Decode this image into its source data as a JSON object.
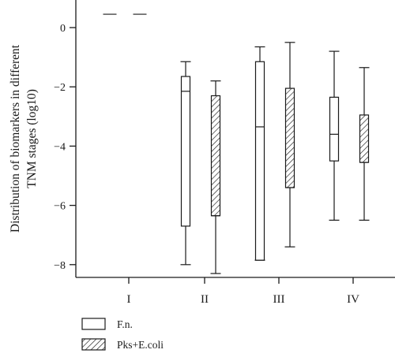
{
  "chart_data": {
    "type": "boxplot",
    "ylabel_line1": "Distribution of biomarkers in different",
    "ylabel_line2": "TNM stages (log10)",
    "ylim": [
      -8.4,
      0.9
    ],
    "yticks": [
      0,
      -2,
      -4,
      -6,
      -8
    ],
    "ytick_labels": [
      "0",
      "−2",
      "−4",
      "−6",
      "−8"
    ],
    "categories": [
      "I",
      "II",
      "III",
      "IV"
    ],
    "legend_position": "bottom-left",
    "series": [
      {
        "name": "F.n.",
        "pattern": "open",
        "stats": [
          {
            "category": "I",
            "min": 0.45,
            "q1": 0.45,
            "median": 0.45,
            "q3": 0.45,
            "max": 0.45
          },
          {
            "category": "II",
            "min": -8.0,
            "q1": -6.7,
            "median": -2.15,
            "q3": -1.65,
            "max": -1.15
          },
          {
            "category": "III",
            "min": -7.85,
            "q1": -7.85,
            "median": -3.35,
            "q3": -1.15,
            "max": -0.65
          },
          {
            "category": "IV",
            "min": -6.5,
            "q1": -4.5,
            "median": -3.6,
            "q3": -2.35,
            "max": -0.8
          }
        ]
      },
      {
        "name": "Pks+E.coli",
        "pattern": "hatched",
        "stats": [
          {
            "category": "I",
            "min": 0.45,
            "q1": 0.45,
            "median": 0.45,
            "q3": 0.45,
            "max": 0.45
          },
          {
            "category": "II",
            "min": -8.3,
            "q1": -6.35,
            "median": -6.35,
            "q3": -2.3,
            "max": -1.8
          },
          {
            "category": "III",
            "min": -7.4,
            "q1": -5.4,
            "median": -5.4,
            "q3": -2.05,
            "max": -0.5
          },
          {
            "category": "IV",
            "min": -6.5,
            "q1": -4.55,
            "median": -4.55,
            "q3": -2.95,
            "max": -1.35
          }
        ]
      }
    ]
  }
}
